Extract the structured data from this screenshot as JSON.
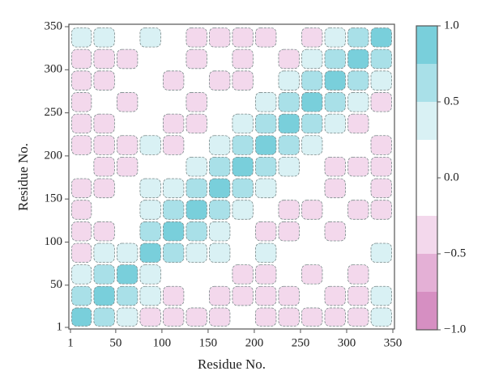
{
  "chart_data": {
    "type": "heatmap",
    "x_label": "Residue No.",
    "y_label": "Residue No.",
    "xbins": [
      1,
      25,
      50,
      75,
      100,
      125,
      150,
      175,
      200,
      225,
      250,
      275,
      300,
      325,
      350
    ],
    "ybins": [
      1,
      25,
      50,
      75,
      100,
      125,
      150,
      175,
      200,
      225,
      250,
      275,
      300,
      325,
      350
    ],
    "z": [
      [
        0.9,
        0.6,
        0.4,
        -0.3,
        -0.35,
        -0.3,
        -0.3,
        -0.2,
        -0.35,
        -0.3,
        -0.3,
        -0.35,
        -0.3,
        0.3
      ],
      [
        0.6,
        0.9,
        0.55,
        0.3,
        -0.3,
        -0.2,
        -0.3,
        -0.3,
        -0.3,
        -0.3,
        -0.2,
        -0.3,
        -0.35,
        0.3
      ],
      [
        0.4,
        0.55,
        0.9,
        0.5,
        0.1,
        -0.2,
        0.1,
        -0.3,
        -0.3,
        0.1,
        -0.3,
        0.1,
        -0.3,
        0.2
      ],
      [
        -0.3,
        0.3,
        0.5,
        0.9,
        0.55,
        0.3,
        0.3,
        0.1,
        0.3,
        0.1,
        0.1,
        -0.2,
        0.1,
        0.3
      ],
      [
        -0.35,
        -0.3,
        0.1,
        0.55,
        0.9,
        0.55,
        0.35,
        0.1,
        -0.3,
        -0.3,
        0.1,
        -0.3,
        -0.2,
        0.1
      ],
      [
        -0.3,
        -0.2,
        -0.2,
        0.3,
        0.55,
        0.9,
        0.55,
        0.3,
        0.1,
        -0.3,
        -0.3,
        0.1,
        -0.3,
        -0.3
      ],
      [
        -0.3,
        -0.3,
        0.1,
        0.3,
        0.35,
        0.55,
        0.9,
        0.55,
        0.3,
        0.1,
        0.1,
        -0.3,
        0.1,
        -0.3
      ],
      [
        -0.2,
        -0.3,
        -0.3,
        0.1,
        0.1,
        0.3,
        0.55,
        0.9,
        0.55,
        0.3,
        0.1,
        -0.3,
        -0.3,
        -0.3
      ],
      [
        -0.35,
        -0.3,
        -0.3,
        0.3,
        -0.3,
        0.1,
        0.3,
        0.55,
        0.9,
        0.55,
        0.3,
        0.1,
        0.1,
        -0.3
      ],
      [
        -0.3,
        -0.3,
        0.1,
        0.1,
        -0.3,
        -0.3,
        0.1,
        0.3,
        0.55,
        0.9,
        0.55,
        0.3,
        -0.3,
        -0.2
      ],
      [
        -0.3,
        -0.2,
        -0.3,
        0.1,
        0.1,
        -0.3,
        0.1,
        0.1,
        0.3,
        0.55,
        0.9,
        0.55,
        0.3,
        -0.3
      ],
      [
        -0.35,
        -0.3,
        0.1,
        -0.2,
        -0.3,
        0.1,
        -0.3,
        -0.3,
        0.1,
        0.3,
        0.55,
        0.9,
        0.55,
        0.3
      ],
      [
        -0.3,
        -0.35,
        -0.3,
        0.1,
        -0.2,
        -0.3,
        0.1,
        -0.3,
        0.1,
        -0.3,
        0.3,
        0.55,
        0.9,
        0.6
      ],
      [
        0.3,
        0.3,
        0.2,
        0.3,
        0.1,
        -0.3,
        -0.3,
        -0.3,
        -0.3,
        -0.2,
        -0.3,
        0.3,
        0.6,
        0.9
      ]
    ],
    "xlim": [
      1,
      350
    ],
    "ylim": [
      1,
      350
    ],
    "xticks": [
      1,
      50,
      100,
      150,
      200,
      250,
      300,
      350
    ],
    "yticks": [
      1,
      50,
      100,
      150,
      200,
      250,
      300,
      350
    ],
    "levels": [
      -1,
      -0.75,
      -0.5,
      -0.25,
      0.25,
      0.5,
      0.75,
      1
    ],
    "colors": [
      "#d68fc2",
      "#e4b0d6",
      "#f3d8ec",
      "#ffffff",
      "#d9f1f4",
      "#a9e0e8",
      "#79cfdb"
    ],
    "clim": [
      -1,
      1
    ],
    "cticks": [
      {
        "value": -1,
        "label": "−1.0"
      },
      {
        "value": -0.5,
        "label": "−0.5"
      },
      {
        "value": 0,
        "label": "0.0"
      },
      {
        "value": 0.5,
        "label": "0.5"
      },
      {
        "value": 1,
        "label": "1.0"
      }
    ]
  }
}
